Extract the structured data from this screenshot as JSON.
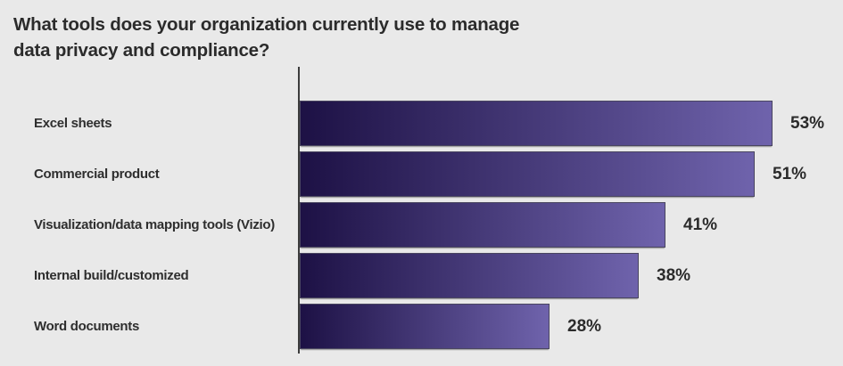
{
  "header": {
    "title_lines": [
      "What tools does your organization currently use to manage",
      "data privacy and compliance?"
    ]
  },
  "chart_data": {
    "type": "bar",
    "orientation": "horizontal",
    "title": "What tools does your organization currently use to manage data privacy and compliance?",
    "categories": [
      "Excel sheets",
      "Commercial product",
      "Visualization/data mapping tools (Vizio)",
      "Internal build/customized",
      "Word documents"
    ],
    "values": [
      53,
      51,
      41,
      38,
      28
    ],
    "value_labels": [
      "53%",
      "51%",
      "41%",
      "38%",
      "28%"
    ],
    "unit": "%",
    "xlabel": "",
    "ylabel": "",
    "xlim": [
      0,
      60
    ],
    "grid": false,
    "legend": false,
    "bar_gradient_start": "#1d1145",
    "bar_gradient_end": "#6f63ac",
    "bar_border_color": "#4a4660",
    "axis_color": "#3c3c3c",
    "background_color": "#e9e9e9",
    "text_color": "#2b2b2b"
  }
}
